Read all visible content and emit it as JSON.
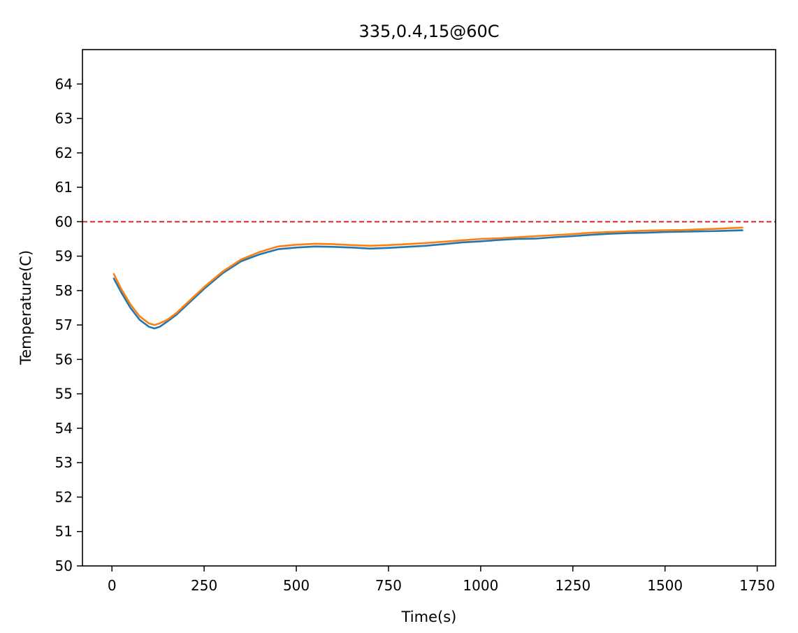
{
  "chart_data": {
    "type": "line",
    "title": "335,0.4,15@60C",
    "xlabel": "Time(s)",
    "ylabel": "Temperature(C)",
    "xlim": [
      -80,
      1800
    ],
    "ylim": [
      50,
      65
    ],
    "xticks": [
      0,
      250,
      500,
      750,
      1000,
      1250,
      1500,
      1750
    ],
    "yticks": [
      50,
      51,
      52,
      53,
      54,
      55,
      56,
      57,
      58,
      59,
      60,
      61,
      62,
      63,
      64
    ],
    "grid": false,
    "reference_line": {
      "y": 60,
      "color": "#d62728",
      "style": "dashed"
    },
    "series": [
      {
        "color": "#1f77b4",
        "x": [
          5,
          25,
          50,
          75,
          100,
          115,
          130,
          150,
          175,
          200,
          250,
          300,
          350,
          400,
          450,
          500,
          550,
          600,
          650,
          700,
          750,
          800,
          850,
          900,
          950,
          1000,
          1050,
          1100,
          1150,
          1200,
          1250,
          1300,
          1350,
          1400,
          1450,
          1500,
          1550,
          1600,
          1650,
          1710
        ],
        "y": [
          58.35,
          57.95,
          57.5,
          57.15,
          56.95,
          56.9,
          56.95,
          57.1,
          57.3,
          57.55,
          58.05,
          58.5,
          58.85,
          59.05,
          59.2,
          59.25,
          59.28,
          59.27,
          59.25,
          59.22,
          59.24,
          59.27,
          59.3,
          59.35,
          59.4,
          59.43,
          59.47,
          59.5,
          59.51,
          59.55,
          59.58,
          59.62,
          59.65,
          59.67,
          59.68,
          59.7,
          59.71,
          59.72,
          59.73,
          59.75
        ]
      },
      {
        "color": "#ff7f0e",
        "x": [
          5,
          25,
          50,
          75,
          100,
          115,
          130,
          150,
          175,
          200,
          250,
          300,
          350,
          400,
          450,
          500,
          550,
          600,
          650,
          700,
          750,
          800,
          850,
          900,
          950,
          1000,
          1050,
          1100,
          1150,
          1200,
          1250,
          1300,
          1350,
          1400,
          1450,
          1500,
          1550,
          1600,
          1650,
          1710
        ],
        "y": [
          58.48,
          58.05,
          57.6,
          57.25,
          57.05,
          57.0,
          57.05,
          57.15,
          57.35,
          57.6,
          58.1,
          58.55,
          58.9,
          59.12,
          59.28,
          59.33,
          59.36,
          59.35,
          59.32,
          59.3,
          59.32,
          59.35,
          59.38,
          59.42,
          59.46,
          59.5,
          59.52,
          59.55,
          59.58,
          59.61,
          59.64,
          59.68,
          59.7,
          59.72,
          59.74,
          59.75,
          59.76,
          59.78,
          59.8,
          59.83
        ]
      }
    ]
  }
}
